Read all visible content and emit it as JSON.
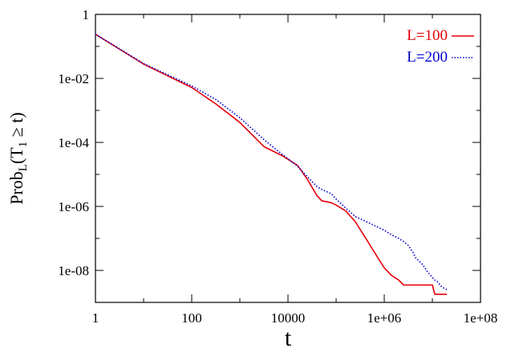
{
  "chart_data": {
    "type": "line",
    "title": "",
    "xlabel": "t",
    "ylabel": {
      "base": "Prob",
      "sub": "L",
      "open": "(T",
      "sub2": "1",
      "rel": " ≥ t)"
    },
    "x_scale": "log",
    "y_scale": "log",
    "xlim": [
      1,
      100000000
    ],
    "ylim": [
      1e-09,
      1
    ],
    "x_ticks": [
      {
        "value": 1,
        "label": "1"
      },
      {
        "value": 100,
        "label": "100"
      },
      {
        "value": 10000,
        "label": "10000"
      },
      {
        "value": 1000000,
        "label": "1e+06"
      },
      {
        "value": 100000000,
        "label": "1e+08"
      }
    ],
    "y_ticks": [
      {
        "value": 1,
        "label": "1"
      },
      {
        "value": 0.01,
        "label": "1e-02"
      },
      {
        "value": 0.0001,
        "label": "1e-04"
      },
      {
        "value": 1e-06,
        "label": "1e-06"
      },
      {
        "value": 1e-08,
        "label": "1e-08"
      }
    ],
    "grid": false,
    "legend": "top-right",
    "series": [
      {
        "name": "L=100",
        "color": "#e8000b",
        "style": "solid",
        "x": [
          1,
          10,
          100,
          316,
          1000,
          3162,
          7943,
          15849,
          25119,
          39811,
          50119,
          79433,
          100000,
          158489,
          251189,
          398107,
          631000,
          1000000,
          1412538,
          1995262,
          2511886,
          3162278,
          3981072,
          4466836,
          6309573,
          7943282,
          10000000,
          11220185,
          12589254,
          15848932,
          19952623
        ],
        "y": [
          0.24,
          0.028,
          0.0052,
          0.0016,
          0.00042,
          7.4e-05,
          3.7e-05,
          1.9e-05,
          7.1e-06,
          2.2e-06,
          1.5e-06,
          1.3e-06,
          1.1e-06,
          7.2e-07,
          3.3e-07,
          1.1e-07,
          3.6e-08,
          1.2e-08,
          7e-09,
          5e-09,
          3.5e-09,
          3.5e-09,
          3.5e-09,
          3.5e-09,
          3.5e-09,
          3.5e-09,
          3.5e-09,
          1.8e-09,
          1.8e-09,
          1.8e-09,
          1.8e-09
        ]
      },
      {
        "name": "L=200",
        "color": "#0000d0",
        "style": "dotted",
        "x": [
          1,
          10,
          100,
          316,
          1000,
          3162,
          7943,
          15849,
          25119,
          39811,
          50119,
          79433,
          100000,
          158489,
          251189,
          398107,
          631000,
          1000000,
          1412538,
          1995262,
          2511886,
          3162278,
          3981072,
          4466836,
          6309573,
          7943282,
          10000000,
          11220185,
          12589254,
          15848932,
          19952623
        ],
        "y": [
          0.24,
          0.029,
          0.0058,
          0.0022,
          0.00059,
          0.000122,
          4e-05,
          1.8e-05,
          8.5e-06,
          4.2e-06,
          3.4e-06,
          2.5e-06,
          1.7e-06,
          8.8e-07,
          4.8e-07,
          3.5e-07,
          2.5e-07,
          1.8e-07,
          1.3e-07,
          1e-07,
          8e-08,
          6e-08,
          3.6e-08,
          2.5e-08,
          1.5e-08,
          9e-09,
          6e-09,
          5e-09,
          4.5e-09,
          3e-09,
          2.5e-09
        ]
      }
    ]
  }
}
